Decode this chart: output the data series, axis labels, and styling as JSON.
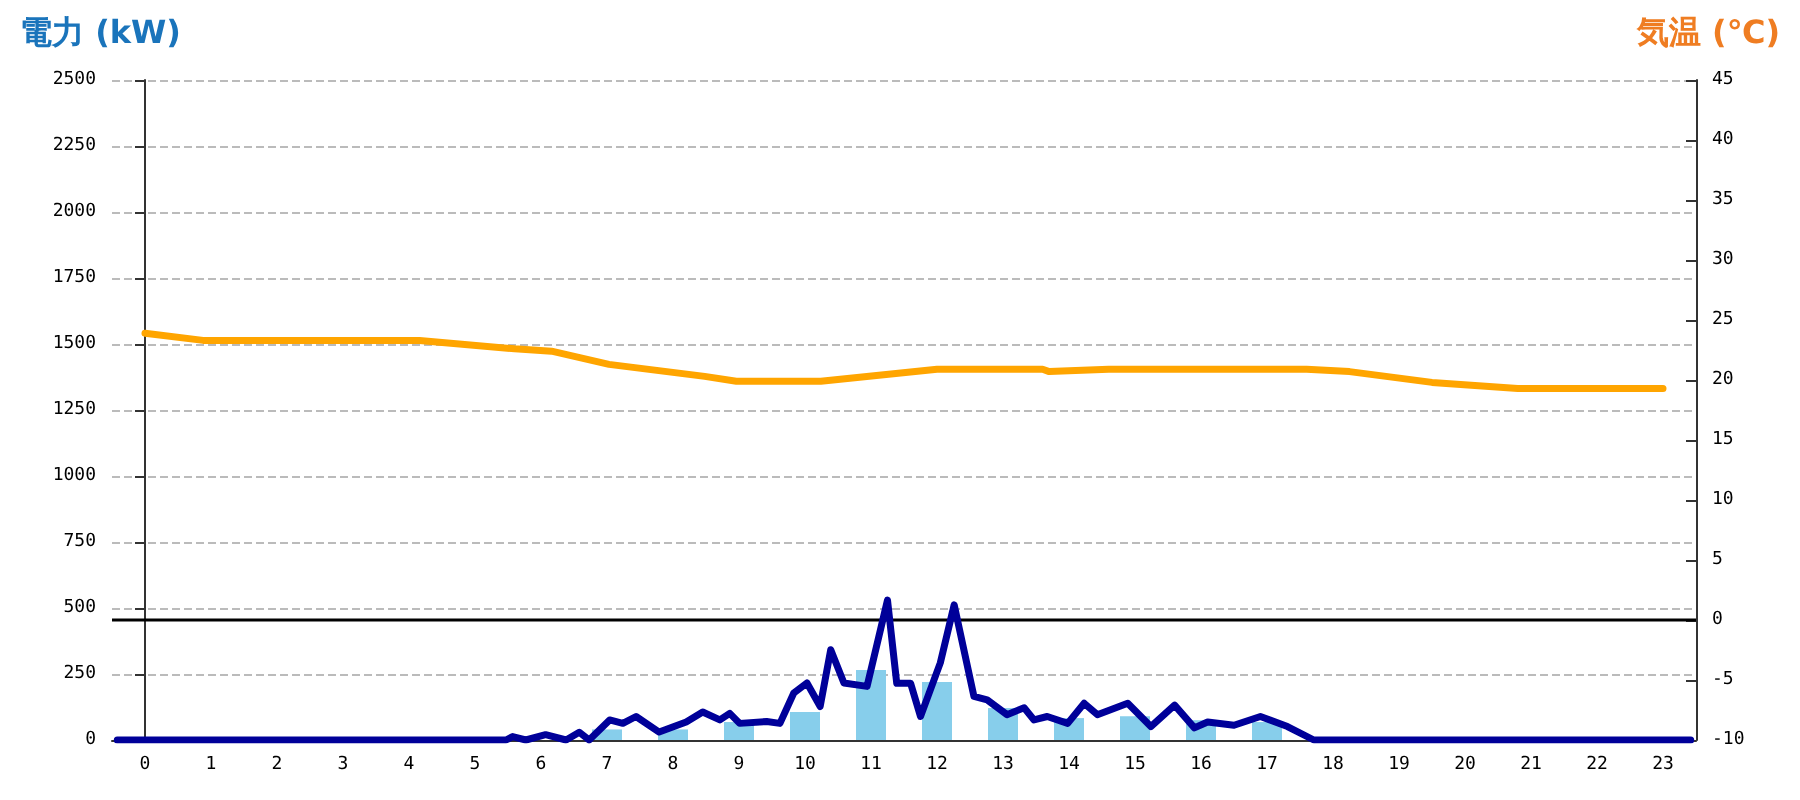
{
  "chart_data": {
    "type": "bar",
    "ylabel": "電力 (kW)",
    "y2label": "気温 (℃)",
    "x": [
      0,
      1,
      2,
      3,
      4,
      5,
      6,
      7,
      8,
      9,
      10,
      11,
      12,
      13,
      14,
      15,
      16,
      17,
      18,
      19,
      20,
      21,
      22,
      23
    ],
    "xlim": [
      -0.5,
      23.5
    ],
    "xticks": [
      0,
      1,
      2,
      3,
      4,
      5,
      6,
      7,
      8,
      9,
      10,
      11,
      12,
      13,
      14,
      15,
      16,
      17,
      18,
      19,
      20,
      21,
      22,
      23
    ],
    "series": [
      {
        "color": "#87ceeb",
        "values": [
          0,
          0,
          0,
          0,
          0,
          0,
          0,
          40,
          40,
          68,
          106,
          265,
          220,
          121,
          83,
          90,
          75,
          68,
          0,
          0,
          0,
          0,
          0,
          0
        ]
      },
      {
        "type": "line",
        "color": "#000099",
        "x": [
          -0.42,
          5.47,
          5.57,
          5.77,
          6.07,
          6.38,
          6.58,
          6.73,
          7.04,
          7.24,
          7.44,
          7.79,
          8.2,
          8.45,
          8.71,
          8.86,
          9.01,
          9.42,
          9.62,
          9.83,
          10.03,
          10.23,
          10.39,
          10.59,
          10.94,
          11.25,
          11.39,
          11.6,
          11.75,
          12.05,
          12.26,
          12.56,
          12.76,
          13.06,
          13.32,
          13.47,
          13.67,
          13.98,
          14.23,
          14.43,
          14.89,
          15.24,
          15.6,
          15.9,
          16.1,
          16.5,
          16.9,
          17.31,
          17.71,
          23.42
        ],
        "values": [
          0,
          0,
          13,
          0,
          20,
          0,
          29,
          0,
          76,
          63,
          89,
          30,
          68,
          106,
          76,
          101,
          63,
          70,
          63,
          178,
          216,
          127,
          342,
          216,
          203,
          530,
          215,
          215,
          89,
          292,
          512,
          165,
          152,
          96,
          122,
          76,
          89,
          63,
          139,
          96,
          139,
          51,
          132,
          46,
          68,
          56,
          89,
          51,
          0,
          0
        ]
      },
      {
        "type": "line",
        "axis": "y2",
        "color": "#ffa500",
        "x": [
          0,
          0.88,
          4.16,
          5.6,
          6.16,
          7.03,
          8.48,
          8.96,
          10.24,
          12,
          13.6,
          13.7,
          14.6,
          17.6,
          18.25,
          19.5,
          20.8,
          23
        ],
        "values": [
          23.9,
          23.3,
          23.3,
          22.6,
          22.4,
          21.3,
          20.3,
          19.9,
          19.9,
          20.9,
          20.9,
          20.7,
          20.9,
          20.9,
          20.7,
          19.8,
          19.3,
          19.3
        ]
      }
    ],
    "ylim": [
      0,
      2500
    ],
    "yticks": [
      0,
      250,
      500,
      750,
      1000,
      1250,
      1500,
      1750,
      2000,
      2250,
      2500
    ],
    "y2lim": [
      -10,
      45
    ],
    "y2ticks": [
      -10,
      -5,
      0,
      5,
      10,
      15,
      20,
      25,
      30,
      35,
      40,
      45
    ],
    "grid": "y",
    "marker": "none",
    "line_style": "solid",
    "ref_lines": [
      {
        "axis": "y2",
        "value": 0,
        "color": "#000000"
      }
    ]
  }
}
